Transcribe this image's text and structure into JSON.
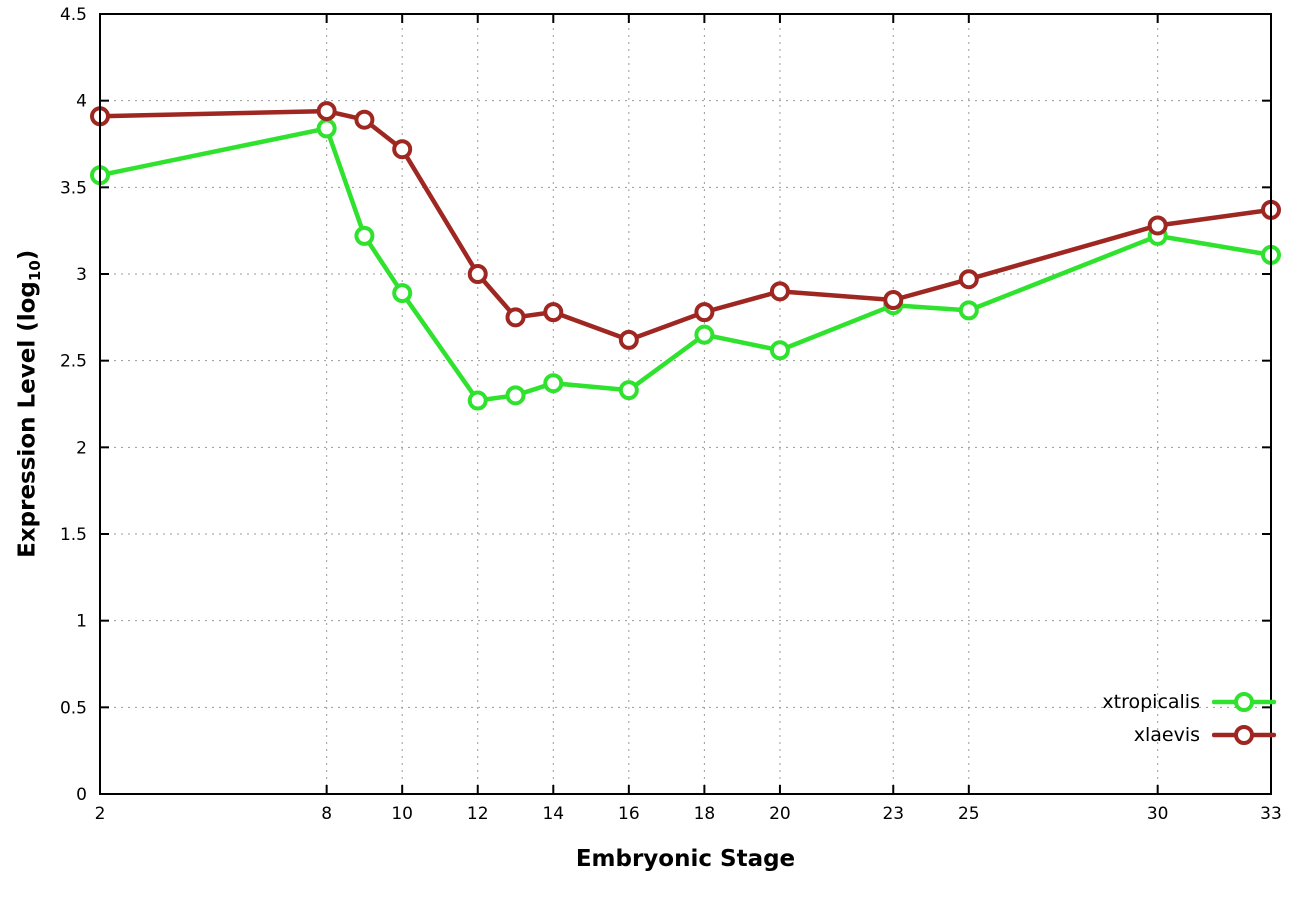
{
  "chart_data": {
    "type": "line",
    "title": "",
    "xlabel": "Embryonic Stage",
    "ylabel": "Expression Level (log10)",
    "ylabel_prefix": "Expression Level (log",
    "ylabel_sub": "10",
    "ylabel_suffix": ")",
    "x": [
      2,
      8,
      9,
      10,
      12,
      13,
      14,
      16,
      18,
      20,
      23,
      25,
      30,
      33
    ],
    "series": [
      {
        "name": "xtropicalis",
        "color": "#2ee22e",
        "values": [
          3.57,
          3.84,
          3.22,
          2.89,
          2.27,
          2.3,
          2.37,
          2.33,
          2.65,
          2.56,
          2.82,
          2.79,
          3.22,
          3.11
        ]
      },
      {
        "name": "xlaevis",
        "color": "#9e2722",
        "values": [
          3.91,
          3.94,
          3.89,
          3.72,
          3.0,
          2.75,
          2.78,
          2.62,
          2.78,
          2.9,
          2.85,
          2.97,
          3.28,
          3.37
        ]
      }
    ],
    "xlim": [
      2,
      33
    ],
    "ylim": [
      0,
      4.5
    ],
    "xticks": [
      2,
      8,
      10,
      12,
      14,
      16,
      18,
      20,
      23,
      25,
      30,
      33
    ],
    "yticks": [
      0,
      0.5,
      1,
      1.5,
      2,
      2.5,
      3,
      3.5,
      4,
      4.5
    ],
    "grid": true,
    "grid_style": "dotted",
    "legend_position": "bottom-right",
    "marker": "open-circle",
    "background_color": "#ffffff",
    "axis_color": "#000000",
    "grid_color": "#9a9a9a"
  }
}
